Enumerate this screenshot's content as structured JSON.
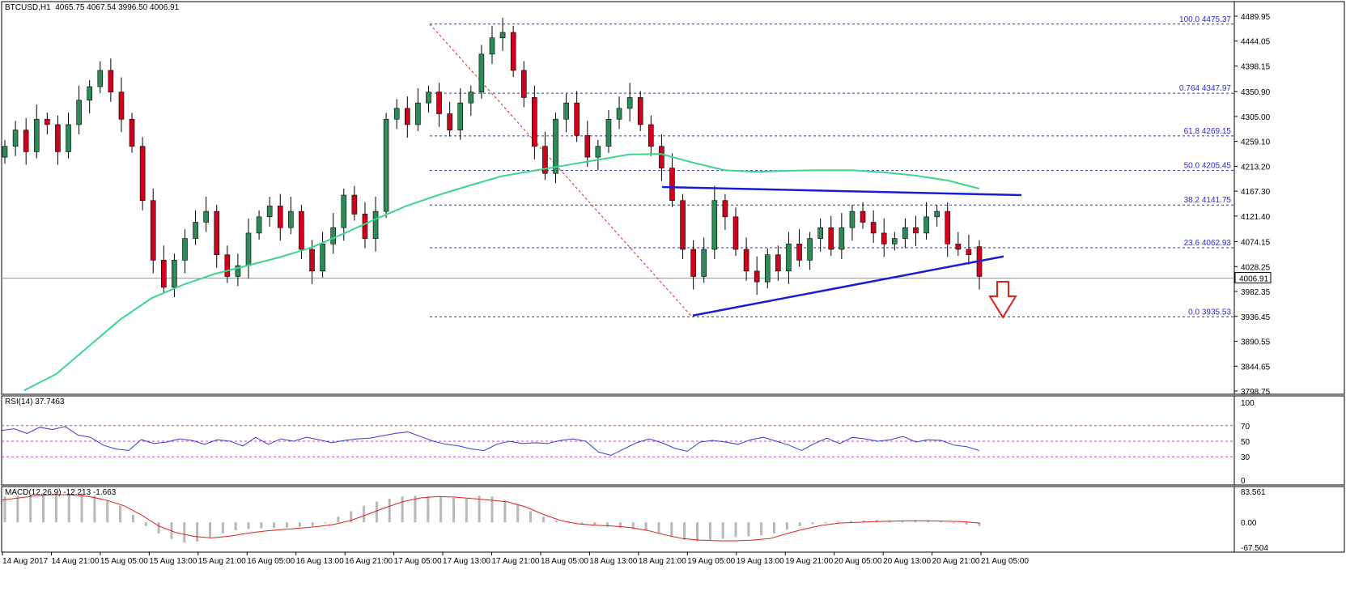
{
  "header": {
    "main_label": "BTCUSD,H1  4065.75 4067.54 3996.50 4006.91",
    "rsi_label": "RSI(14) 37.7463",
    "macd_label": "MACD(12,26,9) -12.213 -1.663"
  },
  "current_price": "4006.91",
  "colors": {
    "bull": "#2e8b57",
    "bear": "#d0021b",
    "ma": "#3cd68e",
    "trendline": "#1b1bd6",
    "fib": "#2b2bd6",
    "rsi_line": "#3b3bd6",
    "rsi_level": "#b04bb0",
    "macd_signal": "#e0201b",
    "macd_hist": "#b8b8b8",
    "arrow": "#e0201b"
  },
  "chart_data": [
    {
      "type": "candlestick",
      "symbol": "BTCUSD",
      "timeframe": "H1",
      "ylim": [
        3798.75,
        4489.95
      ],
      "y_ticks": [
        "4489.95",
        "4444.05",
        "4398.15",
        "4350.90",
        "4305.00",
        "4259.10",
        "4213.20",
        "4167.30",
        "4121.40",
        "4074.15",
        "4028.25",
        "3982.35",
        "3936.45",
        "3890.55",
        "3844.65",
        "3798.75"
      ],
      "x_ticks": [
        "14 Aug 2017",
        "14 Aug 21:00",
        "15 Aug 05:00",
        "15 Aug 13:00",
        "15 Aug 21:00",
        "16 Aug 05:00",
        "16 Aug 13:00",
        "16 Aug 21:00",
        "17 Aug 05:00",
        "17 Aug 13:00",
        "17 Aug 21:00",
        "18 Aug 05:00",
        "18 Aug 13:00",
        "18 Aug 21:00",
        "19 Aug 05:00",
        "19 Aug 13:00",
        "19 Aug 21:00",
        "20 Aug 05:00",
        "20 Aug 13:00",
        "20 Aug 21:00",
        "21 Aug 05:00"
      ],
      "fibonacci": [
        {
          "label": "100.0",
          "value": 4475.37
        },
        {
          "label": "0.764",
          "value": 4347.97
        },
        {
          "label": "61.8",
          "value": 4269.15
        },
        {
          "label": "50.0",
          "value": 4205.45
        },
        {
          "label": "38.2",
          "value": 4141.75
        },
        {
          "label": "23.6",
          "value": 4062.93
        },
        {
          "label": "0.0",
          "value": 3935.53
        }
      ],
      "moving_average": [
        3800,
        3830,
        3880,
        3930,
        3970,
        3995,
        4015,
        4030,
        4045,
        4063,
        4088,
        4115,
        4140,
        4160,
        4178,
        4195,
        4205,
        4215,
        4225,
        4235,
        4236,
        4220,
        4206,
        4203,
        4205,
        4206,
        4206,
        4202,
        4196,
        4187,
        4172
      ],
      "trendlines": [
        {
          "name": "resistance",
          "from": 4175,
          "to": 4160
        },
        {
          "name": "support",
          "from": 3938,
          "to": 4047
        }
      ],
      "closes": [
        4250,
        4280,
        4240,
        4300,
        4290,
        4240,
        4290,
        4335,
        4360,
        4390,
        4350,
        4300,
        4250,
        4150,
        4040,
        3990,
        4040,
        4080,
        4110,
        4130,
        4050,
        4010,
        4030,
        4090,
        4120,
        4140,
        4100,
        4130,
        4060,
        4020,
        4070,
        4100,
        4160,
        4125,
        4080,
        4130,
        4300,
        4320,
        4290,
        4330,
        4350,
        4310,
        4280,
        4330,
        4350,
        4420,
        4450,
        4460,
        4390,
        4340,
        4250,
        4200,
        4300,
        4330,
        4270,
        4230,
        4250,
        4300,
        4320,
        4340,
        4290,
        4250,
        4210,
        4150,
        4060,
        4010,
        4060,
        4150,
        4120,
        4060,
        4020,
        4000,
        4050,
        4020,
        4070,
        4040,
        4080,
        4100,
        4060,
        4100,
        4130,
        4110,
        4090,
        4070,
        4080,
        4100,
        4090,
        4120,
        4130,
        4070,
        4060,
        4050,
        4010
      ],
      "opens": [
        4230,
        4250,
        4280,
        4240,
        4300,
        4290,
        4240,
        4290,
        4335,
        4360,
        4390,
        4350,
        4300,
        4250,
        4150,
        4040,
        3990,
        4040,
        4080,
        4110,
        4130,
        4050,
        4010,
        4030,
        4090,
        4120,
        4140,
        4100,
        4130,
        4060,
        4020,
        4070,
        4100,
        4160,
        4125,
        4080,
        4130,
        4300,
        4320,
        4290,
        4330,
        4350,
        4310,
        4280,
        4330,
        4350,
        4420,
        4450,
        4460,
        4390,
        4340,
        4250,
        4200,
        4300,
        4330,
        4270,
        4230,
        4250,
        4300,
        4320,
        4340,
        4290,
        4250,
        4210,
        4150,
        4060,
        4010,
        4060,
        4150,
        4120,
        4060,
        4020,
        4000,
        4050,
        4020,
        4070,
        4040,
        4080,
        4100,
        4060,
        4100,
        4130,
        4110,
        4090,
        4070,
        4080,
        4100,
        4090,
        4120,
        4130,
        4070,
        4060,
        4065
      ]
    },
    {
      "type": "line",
      "name": "RSI(14)",
      "ylim": [
        0,
        100
      ],
      "levels": [
        70,
        50,
        30
      ],
      "y_ticks": [
        "100",
        "70",
        "50",
        "30",
        "0"
      ],
      "values": [
        64,
        66,
        60,
        68,
        65,
        69,
        58,
        55,
        45,
        40,
        38,
        52,
        47,
        49,
        53,
        51,
        46,
        52,
        50,
        44,
        55,
        46,
        53,
        50,
        55,
        52,
        48,
        51,
        53,
        54,
        57,
        60,
        62,
        56,
        50,
        46,
        44,
        40,
        38,
        46,
        50,
        47,
        48,
        47,
        51,
        53,
        50,
        36,
        32,
        40,
        48,
        53,
        48,
        41,
        37,
        49,
        51,
        49,
        46,
        52,
        55,
        50,
        45,
        38,
        47,
        54,
        47,
        55,
        53,
        50,
        52,
        56,
        49,
        52,
        51,
        45,
        43,
        38
      ]
    },
    {
      "type": "histogram+line",
      "name": "MACD(12,26,9)",
      "ylim": [
        -67.504,
        83.561
      ],
      "y_ticks": [
        "83.561",
        "0.00",
        "-67.504"
      ],
      "histogram": [
        70,
        72,
        74,
        76,
        78,
        77,
        78,
        72,
        60,
        45,
        20,
        -10,
        -30,
        -45,
        -55,
        -52,
        -40,
        -30,
        -22,
        -18,
        -16,
        -15,
        -14,
        -12,
        -10,
        0,
        15,
        30,
        45,
        56,
        64,
        70,
        72,
        70,
        70,
        66,
        64,
        72,
        70,
        60,
        48,
        30,
        15,
        5,
        0,
        -5,
        -8,
        -12,
        -15,
        -18,
        -22,
        -30,
        -40,
        -48,
        -52,
        -48,
        -44,
        -40,
        -38,
        -35,
        -30,
        -20,
        -10,
        -5,
        0,
        3,
        4,
        5,
        6,
        5,
        4,
        6,
        5,
        3,
        -2,
        -6,
        -10
      ],
      "signal": [
        60,
        66,
        72,
        75,
        74,
        70,
        60,
        45,
        20,
        -10,
        -28,
        -38,
        -42,
        -38,
        -30,
        -24,
        -20,
        -16,
        -12,
        -6,
        5,
        22,
        40,
        56,
        66,
        70,
        68,
        64,
        60,
        55,
        42,
        22,
        5,
        -4,
        -8,
        -10,
        -14,
        -22,
        -34,
        -44,
        -48,
        -50,
        -50,
        -48,
        -44,
        -30,
        -18,
        -8,
        -2,
        0,
        2,
        3,
        4,
        4,
        3,
        2,
        -2
      ]
    }
  ]
}
